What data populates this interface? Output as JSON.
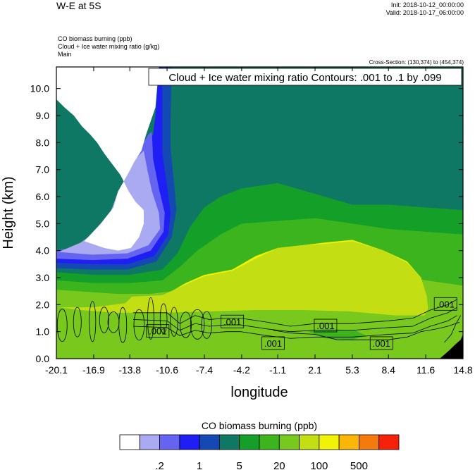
{
  "header": {
    "title": "W-E at 5S",
    "init": "Init: 2018-10-12_00:00:00",
    "valid": "Valid: 2018-10-17_06:00:00",
    "field_lines": [
      "CO biomass burning   (ppb)",
      "Cloud + Ice water mixing ratio   (g/kg)",
      "Main"
    ],
    "cross_section": "Cross-Section: (130,374) to (454,374)"
  },
  "chart_data": {
    "type": "heatmap",
    "title": "W-E at 5S",
    "xlabel": "longitude",
    "ylabel": "Height (km)",
    "x_ticks": [
      "-20.1",
      "-16.9",
      "-13.8",
      "-10.6",
      "-7.4",
      "-4.2",
      "-1.1",
      "2.1",
      "5.3",
      "8.4",
      "11.6",
      "14.8"
    ],
    "x_tick_values": [
      -20.1,
      -16.9,
      -13.8,
      -10.6,
      -7.4,
      -4.2,
      -1.1,
      2.1,
      5.3,
      8.4,
      11.6,
      14.8
    ],
    "y_ticks": [
      "0.0",
      "1.0",
      "2.0",
      "3.0",
      "4.0",
      "5.0",
      "6.0",
      "7.0",
      "8.0",
      "9.0",
      "10.0"
    ],
    "y_tick_values": [
      0,
      1,
      2,
      3,
      4,
      5,
      6,
      7,
      8,
      9,
      10
    ],
    "xlim": [
      -20.1,
      14.8
    ],
    "ylim": [
      0,
      10.8
    ],
    "contour_title": "Cloud + Ice water mixing ratio Contours: .001 to .1 by .099",
    "contour_labels": [
      {
        "text": ".001",
        "x": -11.4,
        "y": 1.0
      },
      {
        "text": ".001",
        "x": -5.0,
        "y": 1.35
      },
      {
        "text": ".001",
        "x": -1.5,
        "y": 0.55
      },
      {
        "text": ".001",
        "x": 3.0,
        "y": 1.2
      },
      {
        "text": ".001",
        "x": 7.8,
        "y": 0.55
      },
      {
        "text": ".001",
        "x": 13.3,
        "y": 2.0
      }
    ],
    "colorbar": {
      "title": "CO biomass burning  (ppb)",
      "colors": [
        "#ffffff",
        "#aaaaf2",
        "#6464f0",
        "#1e1ef5",
        "#1449b4",
        "#0f7864",
        "#14a028",
        "#3cb41e",
        "#78c81e",
        "#c3df14",
        "#f2f208",
        "#fcb608",
        "#f57a0d",
        "#f5210a"
      ],
      "labels": [
        ".2",
        "1",
        "5",
        "20",
        "100",
        "500"
      ]
    },
    "bands": [
      {
        "color": "#78c81e",
        "top": [
          [
            -20.1,
            2.55
          ],
          [
            -15,
            2.4
          ],
          [
            -12,
            2.4
          ],
          [
            -10,
            2.5
          ],
          [
            -7.4,
            2.8
          ],
          [
            -4.2,
            3.0
          ],
          [
            -1.1,
            3.2
          ],
          [
            2.1,
            3.3
          ],
          [
            5.3,
            3.3
          ],
          [
            8.4,
            3.1
          ],
          [
            11.6,
            2.9
          ],
          [
            14.8,
            2.7
          ]
        ]
      },
      {
        "color": "#3cb41e",
        "top": [
          [
            -20.1,
            2.9
          ],
          [
            -16.9,
            2.8
          ],
          [
            -13.8,
            2.8
          ],
          [
            -11,
            2.9
          ],
          [
            -9.5,
            3.4
          ],
          [
            -8,
            4.0
          ],
          [
            -6,
            4.6
          ],
          [
            -4.2,
            5.0
          ],
          [
            -1.1,
            5.1
          ],
          [
            2.1,
            5.2
          ],
          [
            5.3,
            5.0
          ],
          [
            8.4,
            4.8
          ],
          [
            11.6,
            4.7
          ],
          [
            14.8,
            4.6
          ]
        ]
      },
      {
        "color": "#14a028",
        "top": [
          [
            -20.1,
            3.2
          ],
          [
            -16.9,
            3.1
          ],
          [
            -13.8,
            3.1
          ],
          [
            -11,
            3.3
          ],
          [
            -9.7,
            3.9
          ],
          [
            -8.6,
            4.9
          ],
          [
            -7.4,
            5.6
          ],
          [
            -6,
            6.0
          ],
          [
            -4.2,
            6.3
          ],
          [
            -1.1,
            6.5
          ],
          [
            2.1,
            6.1
          ],
          [
            5.3,
            5.7
          ],
          [
            8.4,
            5.7
          ],
          [
            11.6,
            5.6
          ],
          [
            14.8,
            5.5
          ]
        ]
      },
      {
        "color": "#0f7864",
        "top": [
          [
            -20.1,
            3.35
          ],
          [
            -17,
            3.3
          ],
          [
            -14,
            3.3
          ],
          [
            -11.5,
            3.6
          ],
          [
            -10.2,
            4.5
          ],
          [
            -9.8,
            5.5
          ],
          [
            -10,
            6.5
          ],
          [
            -10.3,
            7.8
          ],
          [
            -10.3,
            8.8
          ],
          [
            -10.2,
            10.8
          ],
          [
            14.8,
            10.8
          ]
        ]
      }
    ],
    "regions": [
      {
        "color": "#1449b4",
        "points": [
          [
            -20.1,
            3.35
          ],
          [
            -17,
            3.3
          ],
          [
            -14,
            3.3
          ],
          [
            -11.5,
            3.6
          ],
          [
            -10.2,
            4.5
          ],
          [
            -9.8,
            5.5
          ],
          [
            -10,
            6.5
          ],
          [
            -10.3,
            7.8
          ],
          [
            -10.3,
            8.8
          ],
          [
            -10.2,
            10.8
          ],
          [
            -11.0,
            10.8
          ],
          [
            -11.2,
            9.0
          ],
          [
            -11.4,
            8.3
          ],
          [
            -12.3,
            7.8
          ],
          [
            -13.4,
            6.9
          ],
          [
            -14.2,
            6.3
          ],
          [
            -14.6,
            5.7
          ],
          [
            -15.2,
            5.0
          ],
          [
            -17.5,
            4.0
          ],
          [
            -20.1,
            3.7
          ]
        ]
      },
      {
        "color": "#1e1ef5",
        "points": [
          [
            -20.1,
            3.55
          ],
          [
            -17,
            3.5
          ],
          [
            -14,
            3.5
          ],
          [
            -11.7,
            3.8
          ],
          [
            -10.5,
            4.6
          ],
          [
            -10.3,
            5.4
          ],
          [
            -10.6,
            6.4
          ],
          [
            -11.0,
            7.6
          ],
          [
            -11.0,
            8.6
          ],
          [
            -11.0,
            10.8
          ],
          [
            -11.3,
            10.8
          ],
          [
            -11.6,
            9.0
          ],
          [
            -11.8,
            8.3
          ],
          [
            -12.6,
            7.8
          ],
          [
            -13.6,
            6.9
          ],
          [
            -14.4,
            6.3
          ],
          [
            -14.8,
            5.7
          ],
          [
            -15.4,
            5.0
          ],
          [
            -17.6,
            4.1
          ],
          [
            -20.1,
            3.85
          ]
        ]
      },
      {
        "color": "#6464f0",
        "points": [
          [
            -20.1,
            3.7
          ],
          [
            -17,
            3.65
          ],
          [
            -14,
            3.7
          ],
          [
            -12,
            4.0
          ],
          [
            -10.9,
            4.7
          ],
          [
            -10.8,
            5.4
          ],
          [
            -11.3,
            6.3
          ],
          [
            -11.8,
            7.4
          ],
          [
            -11.9,
            8.4
          ],
          [
            -12.2,
            8.3
          ],
          [
            -12.9,
            7.8
          ],
          [
            -13.8,
            6.9
          ],
          [
            -14.6,
            6.3
          ],
          [
            -15.0,
            5.7
          ],
          [
            -15.6,
            5.0
          ],
          [
            -17.8,
            4.2
          ],
          [
            -20.1,
            4.0
          ]
        ]
      },
      {
        "color": "#aaaaf2",
        "points": [
          [
            -19.9,
            3.95
          ],
          [
            -17,
            3.85
          ],
          [
            -14,
            3.9
          ],
          [
            -12.2,
            4.2
          ],
          [
            -11.2,
            4.8
          ],
          [
            -11.3,
            5.4
          ],
          [
            -11.9,
            6.2
          ],
          [
            -12.3,
            7.0
          ],
          [
            -12.6,
            7.7
          ],
          [
            -13.3,
            7.4
          ],
          [
            -14.0,
            6.8
          ],
          [
            -14.8,
            6.2
          ],
          [
            -15.3,
            5.6
          ],
          [
            -15.8,
            5.0
          ],
          [
            -18.0,
            4.3
          ]
        ]
      },
      {
        "color": "#f2f208",
        "points": [
          [
            -13.8,
            2.2
          ],
          [
            -11,
            2.3
          ],
          [
            -9,
            2.8
          ],
          [
            -7.4,
            3.1
          ],
          [
            -5,
            3.3
          ],
          [
            -3,
            3.8
          ],
          [
            -1.1,
            4.1
          ],
          [
            1,
            4.2
          ],
          [
            3,
            4.3
          ],
          [
            5.3,
            4.4
          ],
          [
            8,
            4.0
          ],
          [
            10,
            3.6
          ],
          [
            11.2,
            3.0
          ],
          [
            11.6,
            2.3
          ],
          [
            11.2,
            1.9
          ],
          [
            9,
            1.85
          ],
          [
            6,
            1.9
          ],
          [
            2,
            1.9
          ],
          [
            -2,
            1.95
          ],
          [
            -7.4,
            1.95
          ],
          [
            -12,
            2.0
          ]
        ]
      },
      {
        "color": "#c3df14",
        "points": [
          [
            -19.9,
            1.9
          ],
          [
            -17,
            1.9
          ],
          [
            -14.2,
            2.05
          ],
          [
            -13.6,
            2.3
          ],
          [
            -11,
            2.35
          ],
          [
            -9,
            2.75
          ],
          [
            -7.4,
            3.05
          ],
          [
            -5,
            3.25
          ],
          [
            -3,
            3.7
          ],
          [
            -1.1,
            4.1
          ],
          [
            1,
            4.2
          ],
          [
            3,
            4.25
          ],
          [
            5.3,
            4.35
          ],
          [
            8,
            4.0
          ],
          [
            10,
            3.55
          ],
          [
            11.2,
            3.0
          ],
          [
            11.7,
            2.3
          ],
          [
            11.8,
            1.85
          ],
          [
            11.5,
            1.6
          ],
          [
            9,
            1.6
          ],
          [
            5,
            1.75
          ],
          [
            1,
            1.8
          ],
          [
            -3,
            1.8
          ],
          [
            -7,
            1.75
          ],
          [
            -11,
            1.7
          ],
          [
            -15,
            1.7
          ],
          [
            -18,
            1.8
          ]
        ]
      },
      {
        "color": "#ffffff",
        "points": [
          [
            -17.7,
            4.35
          ],
          [
            -16.0,
            4.1
          ],
          [
            -14.8,
            4.0
          ],
          [
            -13.7,
            4.1
          ],
          [
            -13.0,
            4.5
          ],
          [
            -12.6,
            5.0
          ],
          [
            -12.6,
            5.5
          ],
          [
            -13.3,
            5.8
          ],
          [
            -13.9,
            6.2
          ],
          [
            -14.6,
            6.8
          ],
          [
            -15.3,
            7.2
          ],
          [
            -16.0,
            7.6
          ],
          [
            -16.6,
            8.0
          ],
          [
            -17.2,
            8.3
          ],
          [
            -17.9,
            8.6
          ],
          [
            -18.6,
            9.0
          ],
          [
            -19.4,
            9.3
          ],
          [
            -20.1,
            9.6
          ],
          [
            -20.1,
            10.8
          ],
          [
            -11.3,
            10.8
          ],
          [
            -11.6,
            9.3
          ],
          [
            -12.4,
            8.3
          ],
          [
            -12.8,
            7.7
          ],
          [
            -13.4,
            7.3
          ],
          [
            -14.0,
            6.8
          ],
          [
            -14.8,
            6.2
          ],
          [
            -15.2,
            5.6
          ],
          [
            -16.3,
            5.0
          ]
        ]
      },
      {
        "color": "#3cb41e",
        "points": [
          [
            1.5,
            1.0
          ],
          [
            3,
            0.75
          ],
          [
            5.3,
            0.7
          ],
          [
            6.5,
            0.85
          ],
          [
            5.5,
            1.05
          ],
          [
            3,
            1.1
          ]
        ]
      },
      {
        "color": "#000000",
        "points": [
          [
            12.8,
            0.0
          ],
          [
            13.6,
            0.3
          ],
          [
            14.2,
            0.55
          ],
          [
            14.6,
            0.7
          ],
          [
            14.8,
            0.9
          ],
          [
            14.8,
            0.0
          ]
        ]
      }
    ]
  }
}
